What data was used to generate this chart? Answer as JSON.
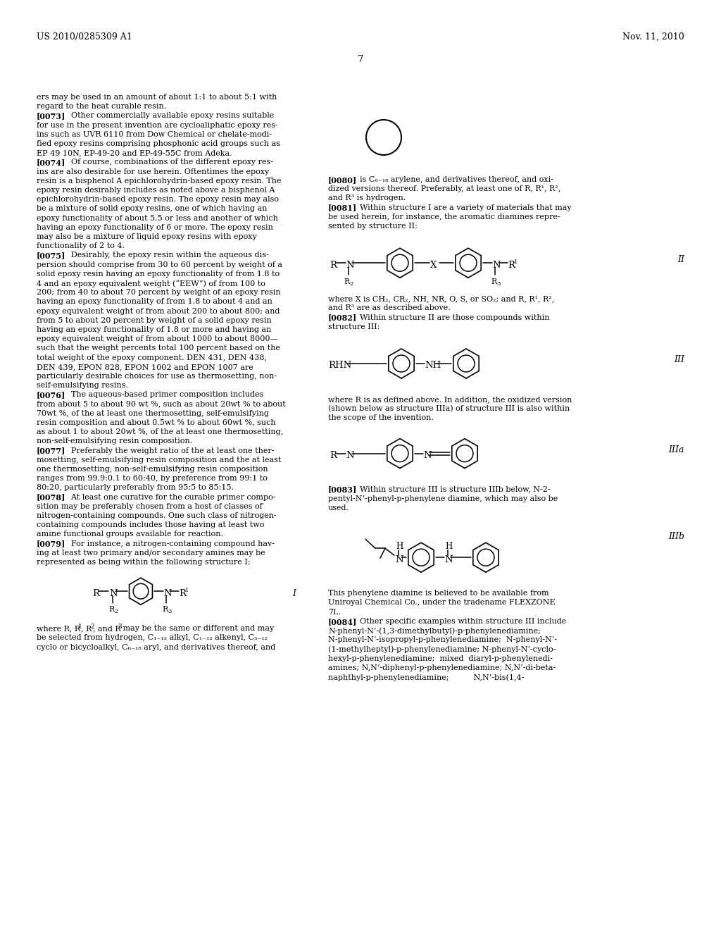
{
  "background_color": "#ffffff",
  "header_left": "US 2010/0285309 A1",
  "header_right": "Nov. 11, 2010",
  "page_number": "7",
  "left_col_lines": [
    {
      "text": "ers may be used in an amount of about 1:1 to about 5:1 with",
      "bold": false,
      "indent": false
    },
    {
      "text": "regard to the heat curable resin.",
      "bold": false,
      "indent": false
    },
    {
      "text": "[0073]",
      "bold": true,
      "indent": false,
      "rest": "    Other commercially available epoxy resins suitable"
    },
    {
      "text": "for use in the present invention are cycloaliphatic epoxy res-",
      "bold": false,
      "indent": false
    },
    {
      "text": "ins such as UVR 6110 from Dow Chemical or chelate-modi-",
      "bold": false,
      "indent": false
    },
    {
      "text": "fied epoxy resins comprising phosphonic acid groups such as",
      "bold": false,
      "indent": false
    },
    {
      "text": "EP 49 10N, EP-49-20 and EP-49-55C from Adeka.",
      "bold": false,
      "indent": false
    },
    {
      "text": "[0074]",
      "bold": true,
      "indent": false,
      "rest": "    Of course, combinations of the different epoxy res-"
    },
    {
      "text": "ins are also desirable for use herein. Oftentimes the epoxy",
      "bold": false,
      "indent": false
    },
    {
      "text": "resin is a bisphenol A epichlorohydrin-based epoxy resin. The",
      "bold": false,
      "indent": false
    },
    {
      "text": "epoxy resin desirably includes as noted above a bisphenol A",
      "bold": false,
      "indent": false
    },
    {
      "text": "epichlorohydrin-based epoxy resin. The epoxy resin may also",
      "bold": false,
      "indent": false
    },
    {
      "text": "be a mixture of solid epoxy resins, one of which having an",
      "bold": false,
      "indent": false
    },
    {
      "text": "epoxy functionality of about 5.5 or less and another of which",
      "bold": false,
      "indent": false
    },
    {
      "text": "having an epoxy functionality of 6 or more. The epoxy resin",
      "bold": false,
      "indent": false
    },
    {
      "text": "may also be a mixture of liquid epoxy resins with epoxy",
      "bold": false,
      "indent": false
    },
    {
      "text": "functionality of 2 to 4.",
      "bold": false,
      "indent": false
    },
    {
      "text": "[0075]",
      "bold": true,
      "indent": false,
      "rest": "    Desirably, the epoxy resin within the aqueous dis-"
    },
    {
      "text": "persion should comprise from 30 to 60 percent by weight of a",
      "bold": false,
      "indent": false
    },
    {
      "text": "solid epoxy resin having an epoxy functionality of from 1.8 to",
      "bold": false,
      "indent": false
    },
    {
      "text": "4 and an epoxy equivalent weight (“EEW”) of from 100 to",
      "bold": false,
      "indent": false
    },
    {
      "text": "200; from 40 to about 70 percent by weight of an epoxy resin",
      "bold": false,
      "indent": false
    },
    {
      "text": "having an epoxy functionality of from 1.8 to about 4 and an",
      "bold": false,
      "indent": false
    },
    {
      "text": "epoxy equivalent weight of from about 200 to about 800; and",
      "bold": false,
      "indent": false
    },
    {
      "text": "from 5 to about 20 percent by weight of a solid epoxy resin",
      "bold": false,
      "indent": false
    },
    {
      "text": "having an epoxy functionality of 1.8 or more and having an",
      "bold": false,
      "indent": false
    },
    {
      "text": "epoxy equivalent weight of from about 1000 to about 8000—",
      "bold": false,
      "indent": false
    },
    {
      "text": "such that the weight percents total 100 percent based on the",
      "bold": false,
      "indent": false
    },
    {
      "text": "total weight of the epoxy component. DEN 431, DEN 438,",
      "bold": false,
      "indent": false
    },
    {
      "text": "DEN 439, EPON 828, EPON 1002 and EPON 1007 are",
      "bold": false,
      "indent": false
    },
    {
      "text": "particularly desirable choices for use as thermosetting, non-",
      "bold": false,
      "indent": false
    },
    {
      "text": "self-emulsifying resins.",
      "bold": false,
      "indent": false
    },
    {
      "text": "[0076]",
      "bold": true,
      "indent": false,
      "rest": "    The aqueous-based primer composition includes"
    },
    {
      "text": "from about 5 to about 90 wt %, such as about 20wt % to about",
      "bold": false,
      "indent": false
    },
    {
      "text": "70wt %, of the at least one thermosetting, self-emulsifying",
      "bold": false,
      "indent": false
    },
    {
      "text": "resin composition and about 0.5wt % to about 60wt %, such",
      "bold": false,
      "indent": false
    },
    {
      "text": "as about 1 to about 20wt %, of the at least one thermosetting,",
      "bold": false,
      "indent": false
    },
    {
      "text": "non-self-emulsifying resin composition.",
      "bold": false,
      "indent": false
    },
    {
      "text": "[0077]",
      "bold": true,
      "indent": false,
      "rest": "    Preferably the weight ratio of the at least one ther-"
    },
    {
      "text": "mosetting, self-emulsifying resin composition and the at least",
      "bold": false,
      "indent": false
    },
    {
      "text": "one thermosetting, non-self-emulsifying resin composition",
      "bold": false,
      "indent": false
    },
    {
      "text": "ranges from 99.9:0.1 to 60:40, by preference from 99:1 to",
      "bold": false,
      "indent": false
    },
    {
      "text": "80:20, particularly preferably from 95:5 to 85:15.",
      "bold": false,
      "indent": false
    },
    {
      "text": "[0078]",
      "bold": true,
      "indent": false,
      "rest": "    At least one curative for the curable primer compo-"
    },
    {
      "text": "sition may be preferably chosen from a host of classes of",
      "bold": false,
      "indent": false
    },
    {
      "text": "nitrogen-containing compounds. One such class of nitrogen-",
      "bold": false,
      "indent": false
    },
    {
      "text": "containing compounds includes those having at least two",
      "bold": false,
      "indent": false
    },
    {
      "text": "amine functional groups available for reaction.",
      "bold": false,
      "indent": false
    },
    {
      "text": "[0079]",
      "bold": true,
      "indent": false,
      "rest": "    For instance, a nitrogen-containing compound hav-"
    },
    {
      "text": "ing at least two primary and/or secondary amines may be",
      "bold": false,
      "indent": false
    },
    {
      "text": "represented as being within the following structure I:",
      "bold": false,
      "indent": false
    }
  ],
  "left_col_bottom_lines": [
    {
      "text": "where R, R",
      "bold": false
    },
    {
      "text": "1",
      "bold": false,
      "super": true
    },
    {
      "text": ", R",
      "bold": false
    },
    {
      "text": "2",
      "bold": false,
      "super": true
    },
    {
      "text": ", and R",
      "bold": false
    },
    {
      "text": "3",
      "bold": false,
      "super": true
    },
    {
      "text": " may be the same or different and may",
      "bold": false
    }
  ],
  "left_col_bottom_line2": "be selected from hydrogen, C₁₂₋₁₂ alkyl, C₁₂₋₁₂ alkenyl, C₅₋₁₂",
  "left_col_bottom_line3": "cyclo or bicycloalkyl, C₆₋₁₈ aryl, and derivatives thereof, and",
  "right_col_para80_line1": "[0080]",
  "right_col_para80_rest": "    is C₆₋₁₈ arylene, and derivatives thereof, and oxi-",
  "right_col_para80_line2": "dized versions thereof. Preferably, at least one of R, R¹, R²,",
  "right_col_para80_line3": "and R³ is hydrogen.",
  "right_col_para81_line1": "[0081]",
  "right_col_para81_rest": "    Within structure I are a variety of materials that may",
  "right_col_para81_line2": "be used herein, for instance, the aromatic diamines repre-",
  "right_col_para81_line3": "sented by structure II:",
  "right_col_para82a_line1": "where X is CH₂, CR₂, NH, NR, O, S, or SO₂; and R, R¹, R²,",
  "right_col_para82a_line2": "and R³ are as described above.",
  "right_col_para82b_line1": "[0082]",
  "right_col_para82b_rest": "    Within structure II are those compounds within",
  "right_col_para82b_line2": "structure III:",
  "right_col_para83a_line1": "where R is as defined above. In addition, the oxidized version",
  "right_col_para83a_line2": "(shown below as structure IIIa) of structure III is also within",
  "right_col_para83a_line3": "the scope of the invention.",
  "right_col_para83b_line1": "[0083]",
  "right_col_para83b_rest": "    Within structure III is structure IIIb below, N-2-",
  "right_col_para83b_line2": "pentyl-N’-phenyl-p-phenylene diamine, which may also be",
  "right_col_para83b_line3": "used.",
  "right_col_para84_line1": "This phenylene diamine is believed to be available from",
  "right_col_para84_line2": "Uniroyal Chemical Co., under the tradename FLEXZONE",
  "right_col_para84_line3": "7L.",
  "right_col_para84b_line1": "[0084]",
  "right_col_para84b_rest": "    Other specific examples within structure III include",
  "right_col_para84b_line2": "N-phenyl-N’-(1,3-dimethylbutyl)-p-phenylenediamine;",
  "right_col_para84b_line3": "N-phenyl-N’-isopropyl-p-phenylenediamine;  N-phenyl-N’-",
  "right_col_para84b_line4": "(1-methylheptyl)-p-phenylenediamine; N-phenyl-N’-cyclo-",
  "right_col_para84b_line5": "hexyl-p-phenylenediamine;  mixed  diaryl-p-phenylenedi-",
  "right_col_para84b_line6": "amines; N,N’-diphenyl-p-phenylenediamine; N,N’-di-beta-",
  "right_col_para84b_line7": "naphthyl-p-phenylenediamine;          N,N’-bis(1,4-"
}
